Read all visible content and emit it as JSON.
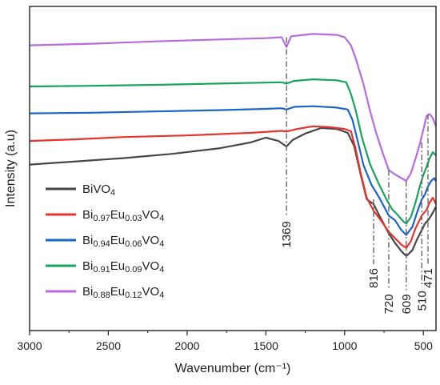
{
  "chart_data": {
    "type": "line",
    "xlabel": "Wavenumber (cm⁻¹)",
    "ylabel": "Intensity (a.u)",
    "xlim": [
      3000,
      420
    ],
    "ylim": [
      0,
      10
    ],
    "x_reversed": true,
    "x_ticks": [
      "3000",
      "2500",
      "2000",
      "1500",
      "1000",
      "500"
    ],
    "y_ticks_shown": false,
    "grid": false,
    "legend_position": "lower-left",
    "series": [
      {
        "name_parts": [
          {
            "t": "BiVO",
            "s": ""
          },
          {
            "t": "4",
            "s": "sub"
          }
        ],
        "color": "#474747",
        "points": [
          [
            3000,
            5.12
          ],
          [
            2700,
            5.22
          ],
          [
            2400,
            5.32
          ],
          [
            2100,
            5.45
          ],
          [
            1800,
            5.62
          ],
          [
            1600,
            5.8
          ],
          [
            1500,
            5.95
          ],
          [
            1420,
            5.85
          ],
          [
            1369,
            5.68
          ],
          [
            1330,
            5.88
          ],
          [
            1250,
            6.08
          ],
          [
            1150,
            6.25
          ],
          [
            1050,
            6.22
          ],
          [
            980,
            6.1
          ],
          [
            940,
            5.7
          ],
          [
            900,
            4.85
          ],
          [
            860,
            4.05
          ],
          [
            816,
            3.9
          ],
          [
            780,
            3.55
          ],
          [
            720,
            3.0
          ],
          [
            680,
            2.7
          ],
          [
            640,
            2.45
          ],
          [
            609,
            2.3
          ],
          [
            570,
            2.48
          ],
          [
            540,
            2.82
          ],
          [
            510,
            3.1
          ],
          [
            490,
            3.3
          ],
          [
            471,
            3.4
          ],
          [
            450,
            3.55
          ],
          [
            420,
            3.82
          ]
        ]
      },
      {
        "name_parts": [
          {
            "t": "Bi",
            "s": ""
          },
          {
            "t": "0.97",
            "s": "sub"
          },
          {
            "t": "Eu",
            "s": ""
          },
          {
            "t": "0.03",
            "s": "sub"
          },
          {
            "t": "VO",
            "s": ""
          },
          {
            "t": "4",
            "s": "sub"
          }
        ],
        "color": "#e8342e",
        "points": [
          [
            3000,
            5.85
          ],
          [
            2700,
            5.9
          ],
          [
            2400,
            5.97
          ],
          [
            2000,
            6.02
          ],
          [
            1600,
            6.1
          ],
          [
            1400,
            6.16
          ],
          [
            1369,
            6.14
          ],
          [
            1300,
            6.22
          ],
          [
            1200,
            6.3
          ],
          [
            1100,
            6.28
          ],
          [
            1000,
            6.22
          ],
          [
            960,
            6.15
          ],
          [
            930,
            5.6
          ],
          [
            900,
            4.9
          ],
          [
            860,
            4.1
          ],
          [
            816,
            3.7
          ],
          [
            770,
            3.4
          ],
          [
            720,
            3.05
          ],
          [
            680,
            2.85
          ],
          [
            640,
            2.65
          ],
          [
            609,
            2.55
          ],
          [
            580,
            2.75
          ],
          [
            550,
            3.15
          ],
          [
            510,
            3.55
          ],
          [
            480,
            3.72
          ],
          [
            460,
            3.95
          ],
          [
            440,
            4.1
          ],
          [
            420,
            3.9
          ]
        ]
      },
      {
        "name_parts": [
          {
            "t": "Bi",
            "s": ""
          },
          {
            "t": "0.94",
            "s": "sub"
          },
          {
            "t": "Eu",
            "s": ""
          },
          {
            "t": "0.06",
            "s": "sub"
          },
          {
            "t": "VO",
            "s": ""
          },
          {
            "t": "4",
            "s": "sub"
          }
        ],
        "color": "#1b64c8",
        "points": [
          [
            3000,
            6.7
          ],
          [
            2600,
            6.72
          ],
          [
            2200,
            6.76
          ],
          [
            1800,
            6.8
          ],
          [
            1500,
            6.84
          ],
          [
            1400,
            6.86
          ],
          [
            1369,
            6.82
          ],
          [
            1320,
            6.9
          ],
          [
            1200,
            6.92
          ],
          [
            1050,
            6.88
          ],
          [
            980,
            6.82
          ],
          [
            950,
            6.5
          ],
          [
            920,
            5.9
          ],
          [
            880,
            5.1
          ],
          [
            830,
            4.5
          ],
          [
            780,
            4.1
          ],
          [
            720,
            3.55
          ],
          [
            680,
            3.4
          ],
          [
            640,
            3.1
          ],
          [
            609,
            2.95
          ],
          [
            570,
            3.2
          ],
          [
            540,
            3.65
          ],
          [
            510,
            4.05
          ],
          [
            490,
            4.2
          ],
          [
            471,
            4.45
          ],
          [
            450,
            4.62
          ],
          [
            430,
            4.7
          ],
          [
            420,
            4.6
          ]
        ]
      },
      {
        "name_parts": [
          {
            "t": "Bi",
            "s": ""
          },
          {
            "t": "0.91",
            "s": "sub"
          },
          {
            "t": "Eu",
            "s": ""
          },
          {
            "t": "0.09",
            "s": "sub"
          },
          {
            "t": "VO",
            "s": ""
          },
          {
            "t": "4",
            "s": "sub"
          }
        ],
        "color": "#1aa35c",
        "points": [
          [
            3000,
            7.53
          ],
          [
            2600,
            7.55
          ],
          [
            2200,
            7.58
          ],
          [
            1800,
            7.62
          ],
          [
            1500,
            7.65
          ],
          [
            1400,
            7.66
          ],
          [
            1369,
            7.62
          ],
          [
            1320,
            7.7
          ],
          [
            1200,
            7.75
          ],
          [
            1050,
            7.72
          ],
          [
            990,
            7.66
          ],
          [
            960,
            7.3
          ],
          [
            930,
            6.8
          ],
          [
            890,
            5.95
          ],
          [
            840,
            5.15
          ],
          [
            790,
            4.6
          ],
          [
            740,
            4.1
          ],
          [
            700,
            3.75
          ],
          [
            660,
            3.55
          ],
          [
            630,
            3.38
          ],
          [
            609,
            3.3
          ],
          [
            580,
            3.5
          ],
          [
            550,
            3.95
          ],
          [
            520,
            4.5
          ],
          [
            500,
            4.8
          ],
          [
            480,
            5.05
          ],
          [
            460,
            5.32
          ],
          [
            440,
            5.5
          ],
          [
            420,
            5.4
          ]
        ]
      },
      {
        "name_parts": [
          {
            "t": "Bi",
            "s": ""
          },
          {
            "t": "0.88",
            "s": "sub"
          },
          {
            "t": "Eu",
            "s": ""
          },
          {
            "t": "0.12",
            "s": "sub"
          },
          {
            "t": "VO",
            "s": ""
          },
          {
            "t": "4",
            "s": "sub"
          }
        ],
        "color": "#b76be0",
        "points": [
          [
            3000,
            8.8
          ],
          [
            2600,
            8.85
          ],
          [
            2200,
            8.92
          ],
          [
            1800,
            8.98
          ],
          [
            1500,
            9.02
          ],
          [
            1400,
            9.05
          ],
          [
            1369,
            8.75
          ],
          [
            1340,
            9.08
          ],
          [
            1200,
            9.15
          ],
          [
            1050,
            9.12
          ],
          [
            1000,
            9.05
          ],
          [
            960,
            8.8
          ],
          [
            930,
            8.4
          ],
          [
            880,
            7.6
          ],
          [
            840,
            6.8
          ],
          [
            800,
            6.1
          ],
          [
            760,
            5.5
          ],
          [
            720,
            4.95
          ],
          [
            680,
            4.82
          ],
          [
            640,
            4.7
          ],
          [
            609,
            4.62
          ],
          [
            580,
            4.85
          ],
          [
            550,
            5.3
          ],
          [
            520,
            5.8
          ],
          [
            500,
            6.2
          ],
          [
            480,
            6.62
          ],
          [
            460,
            6.68
          ],
          [
            440,
            6.55
          ],
          [
            420,
            6.3
          ]
        ]
      }
    ],
    "annotations": [
      {
        "label": "1369",
        "x": 1369,
        "y_top": 9.05,
        "y_bottom": 3.5
      },
      {
        "label": "816",
        "x": 816,
        "y_top": 4.05,
        "y_bottom": 2.05
      },
      {
        "label": "720",
        "x": 720,
        "y_top": 4.95,
        "y_bottom": 1.25
      },
      {
        "label": "609",
        "x": 609,
        "y_top": 4.62,
        "y_bottom": 1.25
      },
      {
        "label": "510",
        "x": 510,
        "y_top": 5.8,
        "y_bottom": 1.35
      },
      {
        "label": "471",
        "x": 471,
        "y_top": 6.68,
        "y_bottom": 2.05
      }
    ]
  }
}
